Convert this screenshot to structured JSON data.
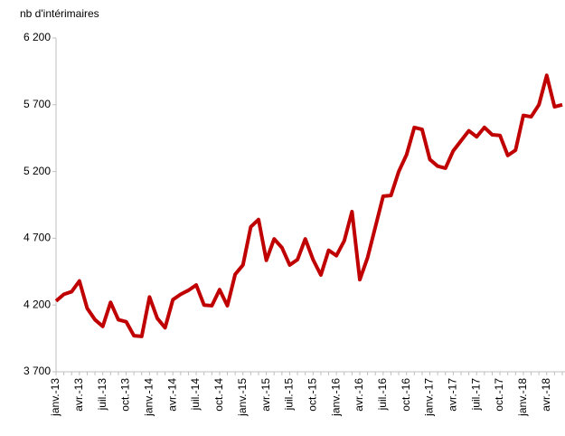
{
  "chart_data": {
    "type": "line",
    "y_label": "nb d'intérimaires",
    "categories": [
      "janv.-13",
      null,
      null,
      "avr.-13",
      null,
      null,
      "juil.-13",
      null,
      null,
      "oct.-13",
      null,
      null,
      "janv.-14",
      null,
      null,
      "avr.-14",
      null,
      null,
      "juil.-14",
      null,
      null,
      "oct.-14",
      null,
      null,
      "janv.-15",
      null,
      null,
      "avr.-15",
      null,
      null,
      "juil.-15",
      null,
      null,
      "oct.-15",
      null,
      null,
      "janv.-16",
      null,
      null,
      "avr.-16",
      null,
      null,
      "juil.-16",
      null,
      null,
      "oct.-16",
      null,
      null,
      "janv.-17",
      null,
      null,
      "avr.-17",
      null,
      null,
      "juil.-17",
      null,
      null,
      "oct.-17",
      null,
      null,
      "janv.-18",
      null,
      null,
      "avr.-18",
      null,
      null
    ],
    "series": [
      {
        "name": "nb d'intérimaires",
        "color": "#c00000",
        "values": [
          4230,
          4280,
          4300,
          4380,
          4175,
          4090,
          4040,
          4220,
          4090,
          4075,
          3970,
          3965,
          4260,
          4100,
          4030,
          4240,
          4280,
          4310,
          4350,
          4200,
          4195,
          4315,
          4195,
          4430,
          4500,
          4785,
          4840,
          4535,
          4695,
          4630,
          4500,
          4540,
          4695,
          4540,
          4425,
          4610,
          4570,
          4680,
          4900,
          4390,
          4555,
          4785,
          5015,
          5020,
          5200,
          5325,
          5530,
          5515,
          5290,
          5240,
          5225,
          5355,
          5430,
          5505,
          5460,
          5530,
          5475,
          5470,
          5320,
          5360,
          5620,
          5610,
          5700,
          5920,
          5685,
          5700
        ]
      }
    ],
    "ylim": [
      3700,
      6200
    ],
    "yticks": [
      {
        "value": 3700,
        "label": "3 700"
      },
      {
        "value": 4200,
        "label": "4 200"
      },
      {
        "value": 4700,
        "label": "4 700"
      },
      {
        "value": 5200,
        "label": "5 200"
      },
      {
        "value": 5700,
        "label": "5 700"
      },
      {
        "value": 6200,
        "label": "6 200"
      }
    ],
    "grid": false
  }
}
